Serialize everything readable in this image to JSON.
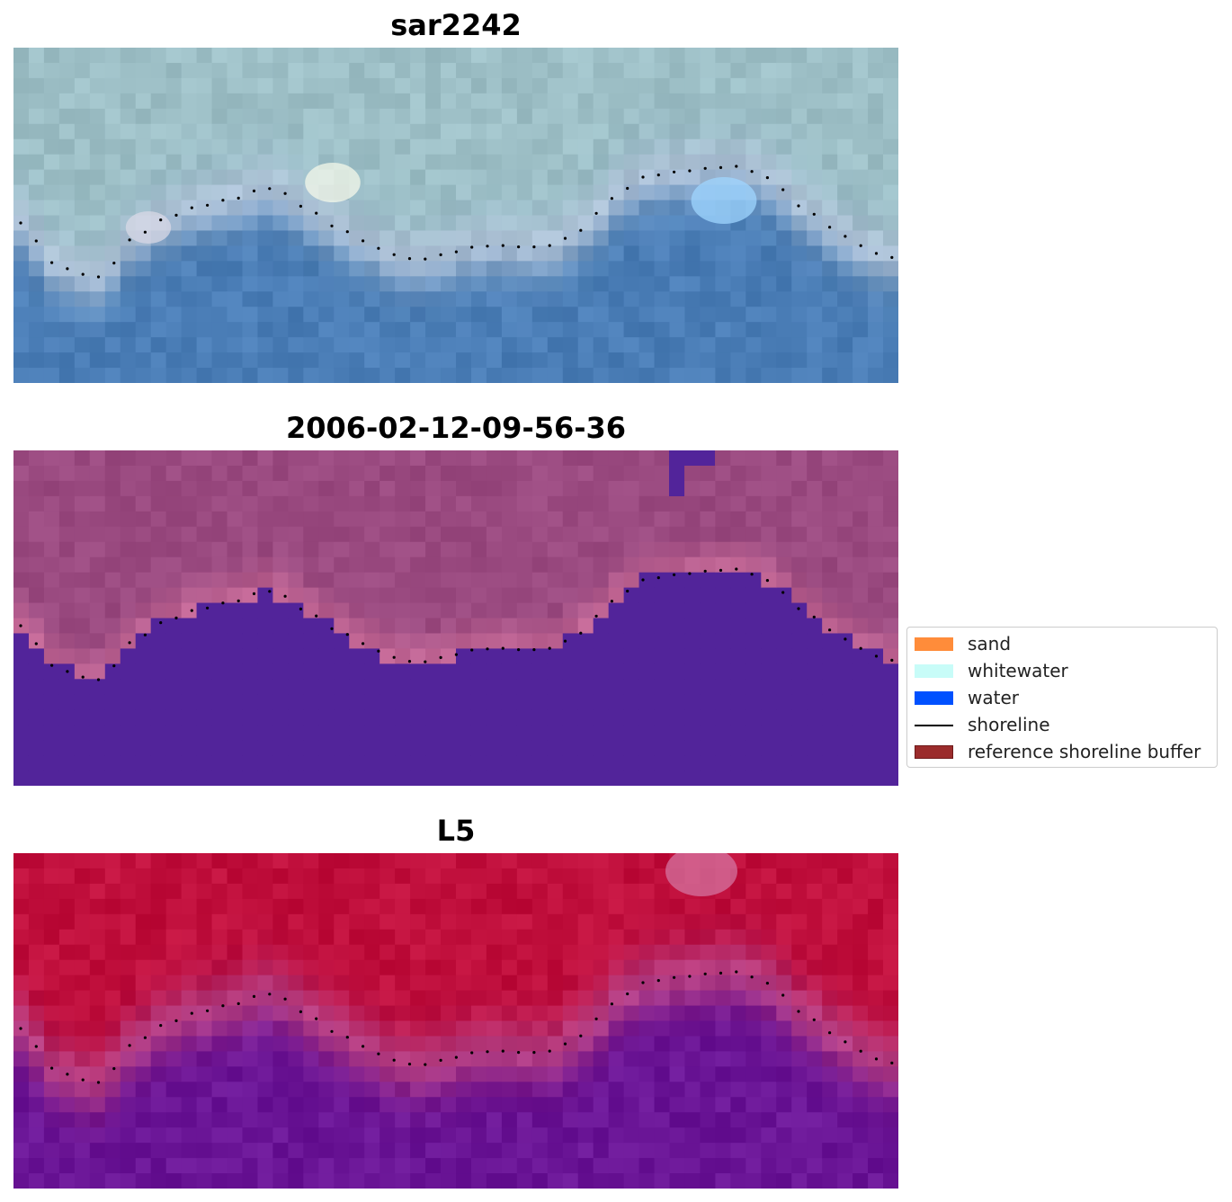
{
  "panels": [
    {
      "title": "sar2242",
      "style": "rgb"
    },
    {
      "title": "2006-02-12-09-56-36",
      "style": "classified"
    },
    {
      "title": "L5",
      "style": "index"
    }
  ],
  "legend": {
    "items": [
      {
        "label": "sand",
        "color": "#ff8c3a",
        "kind": "patch"
      },
      {
        "label": "whitewater",
        "color": "#c8fcf8",
        "kind": "patch"
      },
      {
        "label": "water",
        "color": "#0051ff",
        "kind": "patch"
      },
      {
        "label": "shoreline",
        "color": "#000000",
        "kind": "line"
      },
      {
        "label": "reference shoreline buffer",
        "color": "#9b2c2c",
        "kind": "patch"
      }
    ]
  },
  "colors": {
    "rgb_land": "#9dbfc6",
    "rgb_water": "#4a7db6",
    "class_land": "#9a4a80",
    "class_water": "#52249a",
    "index_land": "#c00f3c",
    "index_water": "#6a1596",
    "shoreline": "#000000"
  }
}
